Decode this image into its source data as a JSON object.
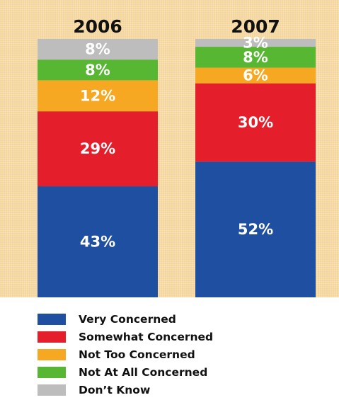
{
  "chart_data": {
    "type": "bar",
    "stacked": true,
    "normalized_percent": true,
    "categories": [
      "2006",
      "2007"
    ],
    "series": [
      {
        "name": "Very Concerned",
        "color": "#1e4fa0",
        "values": [
          43,
          52
        ],
        "labels": [
          "43%",
          "52%"
        ]
      },
      {
        "name": "Somewhat Concerned",
        "color": "#e41e2b",
        "values": [
          29,
          30
        ],
        "labels": [
          "29%",
          "30%"
        ]
      },
      {
        "name": "Not Too Concerned",
        "color": "#f7a823",
        "values": [
          12,
          6
        ],
        "labels": [
          "12%",
          "6%"
        ]
      },
      {
        "name": "Not At All Concerned",
        "color": "#57b632",
        "values": [
          8,
          8
        ],
        "labels": [
          "8%",
          "8%"
        ]
      },
      {
        "name": "Don’t Know",
        "color": "#bdbdbd",
        "values": [
          8,
          3
        ],
        "labels": [
          "8%",
          "3%"
        ]
      }
    ],
    "title": "",
    "xlabel": "",
    "ylabel": "",
    "ylim": [
      0,
      100
    ],
    "grid": false,
    "legend_position": "bottom"
  }
}
